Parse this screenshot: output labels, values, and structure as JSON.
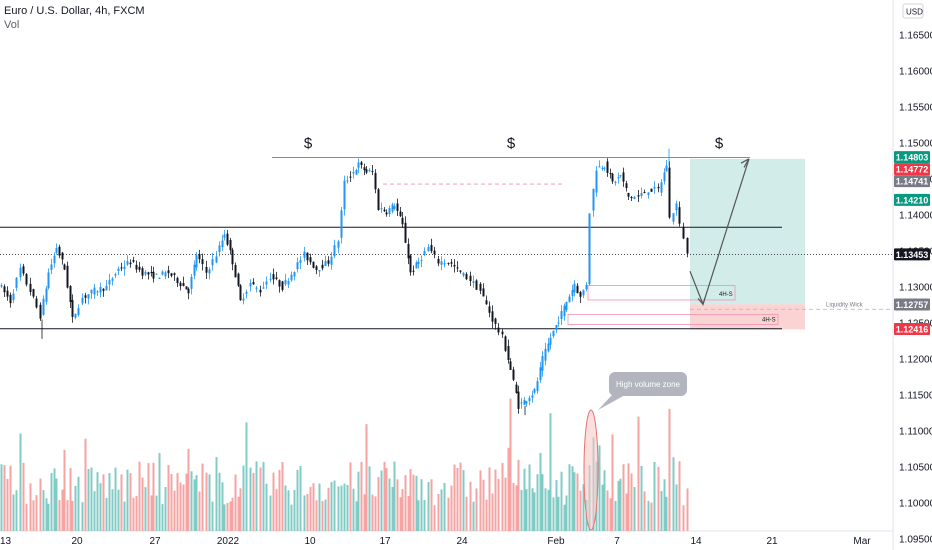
{
  "header": {
    "title": "Euro / U.S. Dollar, 4h, FXCM",
    "volume_label": "Vol"
  },
  "currency_button": "USD",
  "colors": {
    "up": "#2196f3",
    "down": "#131722",
    "vol_up": "#80cbc4",
    "vol_down": "#f5a3a3",
    "target_zone": "#bfe6e0",
    "stop_zone": "#f9c8c8",
    "label_green": "#089981",
    "label_red": "#f23645",
    "label_gray": "#787b86",
    "label_black": "#131722"
  },
  "chart_data": {
    "type": "candlestick",
    "price_axis": {
      "ticks": [
        1.165,
        1.16,
        1.155,
        1.15,
        1.145,
        1.14,
        1.135,
        1.13,
        1.125,
        1.12,
        1.115,
        1.11,
        1.105,
        1.1,
        1.095
      ],
      "labels": [
        "1.16500",
        "1.16000",
        "1.15500",
        "1.15000",
        "1.14500",
        "1.14000",
        "1.13500",
        "1.13000",
        "1.12500",
        "1.12000",
        "1.11500",
        "1.11000",
        "1.10500",
        "1.10000",
        "1.09500"
      ]
    },
    "time_axis": {
      "labels": [
        "13",
        "20",
        "27",
        "2022",
        "10",
        "17",
        "24",
        "Feb",
        "7",
        "14",
        "21",
        "Mar"
      ]
    },
    "price_labels": [
      {
        "text": "1.14803",
        "value": 1.14803,
        "color": "green"
      },
      {
        "text": "1.14772",
        "value": 1.14772,
        "color": "red"
      },
      {
        "text": "1.14741",
        "value": 1.14741,
        "color": "gray"
      },
      {
        "text": "1.14210",
        "value": 1.1421,
        "color": "green"
      },
      {
        "text": "1.13453",
        "value": 1.13453,
        "color": "black"
      },
      {
        "text": "1.12757",
        "value": 1.12757,
        "color": "gray"
      },
      {
        "text": "1.12416",
        "value": 1.12416,
        "color": "red"
      }
    ],
    "candle_path": [
      [
        0,
        1.1305
      ],
      [
        12,
        1.128
      ],
      [
        22,
        1.1325
      ],
      [
        32,
        1.1295
      ],
      [
        42,
        1.126
      ],
      [
        50,
        1.132
      ],
      [
        58,
        1.1355
      ],
      [
        66,
        1.1325
      ],
      [
        74,
        1.1255
      ],
      [
        84,
        1.1285
      ],
      [
        96,
        1.1295
      ],
      [
        108,
        1.13
      ],
      [
        120,
        1.1325
      ],
      [
        132,
        1.1335
      ],
      [
        144,
        1.132
      ],
      [
        158,
        1.1315
      ],
      [
        170,
        1.132
      ],
      [
        182,
        1.1305
      ],
      [
        190,
        1.1295
      ],
      [
        198,
        1.1345
      ],
      [
        208,
        1.132
      ],
      [
        218,
        1.1345
      ],
      [
        226,
        1.1375
      ],
      [
        234,
        1.1335
      ],
      [
        242,
        1.128
      ],
      [
        252,
        1.1305
      ],
      [
        262,
        1.1295
      ],
      [
        272,
        1.1315
      ],
      [
        284,
        1.13
      ],
      [
        296,
        1.1325
      ],
      [
        306,
        1.1345
      ],
      [
        318,
        1.1325
      ],
      [
        330,
        1.1335
      ],
      [
        340,
        1.1365
      ],
      [
        346,
        1.1445
      ],
      [
        352,
        1.1455
      ],
      [
        360,
        1.147
      ],
      [
        368,
        1.146
      ],
      [
        374,
        1.146
      ],
      [
        380,
        1.141
      ],
      [
        388,
        1.1405
      ],
      [
        396,
        1.1415
      ],
      [
        404,
        1.1385
      ],
      [
        412,
        1.132
      ],
      [
        420,
        1.1335
      ],
      [
        430,
        1.1355
      ],
      [
        440,
        1.1335
      ],
      [
        450,
        1.1335
      ],
      [
        462,
        1.132
      ],
      [
        472,
        1.131
      ],
      [
        482,
        1.1295
      ],
      [
        494,
        1.1255
      ],
      [
        504,
        1.123
      ],
      [
        512,
        1.1185
      ],
      [
        520,
        1.1135
      ],
      [
        528,
        1.1145
      ],
      [
        536,
        1.1155
      ],
      [
        544,
        1.12
      ],
      [
        552,
        1.123
      ],
      [
        560,
        1.1255
      ],
      [
        568,
        1.128
      ],
      [
        576,
        1.1305
      ],
      [
        582,
        1.1285
      ],
      [
        588,
        1.1305
      ],
      [
        592,
        1.1405
      ],
      [
        598,
        1.1465
      ],
      [
        606,
        1.147
      ],
      [
        614,
        1.1445
      ],
      [
        622,
        1.1455
      ],
      [
        630,
        1.1425
      ],
      [
        640,
        1.1425
      ],
      [
        650,
        1.1435
      ],
      [
        660,
        1.1435
      ],
      [
        668,
        1.147
      ],
      [
        672,
        1.1395
      ],
      [
        678,
        1.1415
      ],
      [
        682,
        1.1385
      ],
      [
        686,
        1.137
      ],
      [
        688,
        1.1345
      ]
    ],
    "lines": [
      {
        "role": "equal-highs",
        "y": 1.148,
        "x1": 272,
        "x2": 750
      },
      {
        "role": "range-high",
        "y": 1.1383,
        "x1": 0,
        "x2": 782
      },
      {
        "role": "range-low",
        "y": 1.1242,
        "x1": 0,
        "x2": 782
      },
      {
        "role": "current-price",
        "y": 1.13453,
        "x1": 0,
        "x2": 893
      }
    ],
    "annotations": {
      "dollar_markers": [
        "$",
        "$",
        "$"
      ],
      "order_block_label": "4H-S",
      "order_block_label_2": "4H-S",
      "liquidity_label": "Liquidity Wick",
      "callout": "High volume zone"
    },
    "volume": {
      "baseline_y": 0,
      "series": "volume"
    }
  }
}
